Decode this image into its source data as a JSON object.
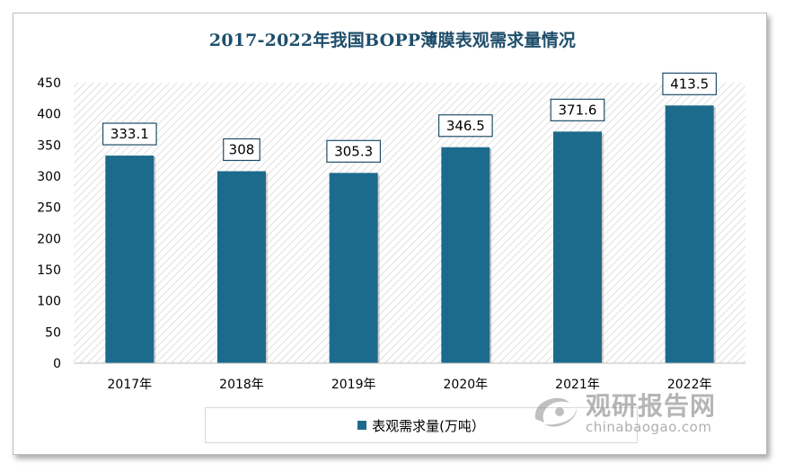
{
  "chart_data": {
    "type": "bar",
    "title": "2017-2022年我国BOPP薄膜表观需求量情况",
    "categories": [
      "2017年",
      "2018年",
      "2019年",
      "2020年",
      "2021年",
      "2022年"
    ],
    "series": [
      {
        "name": "表观需求量(万吨）",
        "values": [
          333.1,
          308,
          305.3,
          346.5,
          371.6,
          413.5
        ]
      }
    ],
    "data_labels": [
      "333.1",
      "308",
      "305.3",
      "346.5",
      "371.6",
      "413.5"
    ],
    "y_ticks": [
      0,
      50,
      100,
      150,
      200,
      250,
      300,
      350,
      400,
      450
    ],
    "ylim": [
      0,
      450
    ],
    "xlabel": "",
    "ylabel": "",
    "legend_position": "bottom",
    "grid": false,
    "bar_color": "#1d6b8c"
  },
  "legend": {
    "label": "表观需求量(万吨）"
  },
  "watermark": {
    "name_cn": "观研报告网",
    "url": "chinabaogao.com"
  },
  "colors": {
    "title": "#1f4e6b",
    "bar": "#1d6b8c",
    "label_border": "#1f4e6b"
  }
}
